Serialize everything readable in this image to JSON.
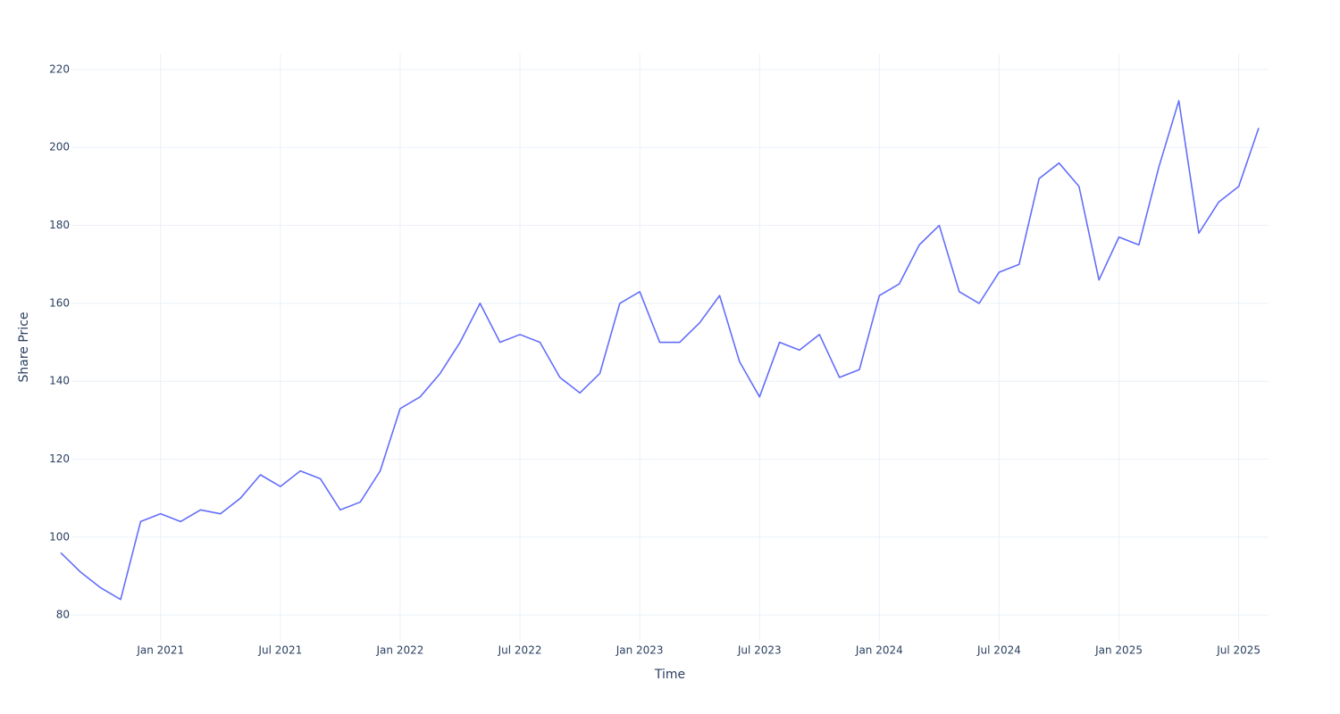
{
  "chart_data": {
    "type": "line",
    "x_label": "Time",
    "y_label": "Share Price",
    "x": [
      "2020-08",
      "2020-09",
      "2020-10",
      "2020-11",
      "2020-12",
      "2021-01",
      "2021-02",
      "2021-03",
      "2021-04",
      "2021-05",
      "2021-06",
      "2021-07",
      "2021-08",
      "2021-09",
      "2021-10",
      "2021-11",
      "2021-12",
      "2022-01",
      "2022-02",
      "2022-03",
      "2022-04",
      "2022-05",
      "2022-06",
      "2022-07",
      "2022-08",
      "2022-09",
      "2022-10",
      "2022-11",
      "2022-12",
      "2023-01",
      "2023-02",
      "2023-03",
      "2023-04",
      "2023-05",
      "2023-06",
      "2023-07",
      "2023-08",
      "2023-09",
      "2023-10",
      "2023-11",
      "2023-12",
      "2024-01",
      "2024-02",
      "2024-03",
      "2024-04",
      "2024-05",
      "2024-06",
      "2024-07",
      "2024-08",
      "2024-09",
      "2024-10",
      "2024-11",
      "2024-12",
      "2025-01",
      "2025-02",
      "2025-03",
      "2025-04",
      "2025-05",
      "2025-06",
      "2025-07",
      "2025-08"
    ],
    "series": [
      {
        "color": "#636efa",
        "values": [
          96,
          91,
          87,
          84,
          104,
          106,
          104,
          107,
          106,
          110,
          116,
          113,
          117,
          115,
          107,
          109,
          117,
          133,
          136,
          142,
          150,
          160,
          150,
          152,
          150,
          141,
          137,
          142,
          160,
          163,
          150,
          150,
          155,
          162,
          145,
          136,
          150,
          148,
          152,
          141,
          143,
          162,
          165,
          175,
          180,
          163,
          160,
          168,
          170,
          192,
          196,
          190,
          166,
          177,
          175,
          195,
          212,
          178,
          186,
          190,
          205
        ]
      }
    ],
    "xlim": [
      "2020-08",
      "2025-08"
    ],
    "xticks": [
      {
        "value": "2021-01",
        "label": "Jan 2021"
      },
      {
        "value": "2021-07",
        "label": "Jul 2021"
      },
      {
        "value": "2022-01",
        "label": "Jan 2022"
      },
      {
        "value": "2022-07",
        "label": "Jul 2022"
      },
      {
        "value": "2023-01",
        "label": "Jan 2023"
      },
      {
        "value": "2023-07",
        "label": "Jul 2023"
      },
      {
        "value": "2024-01",
        "label": "Jan 2024"
      },
      {
        "value": "2024-07",
        "label": "Jul 2024"
      },
      {
        "value": "2025-01",
        "label": "Jan 2025"
      },
      {
        "value": "2025-07",
        "label": "Jul 2025"
      }
    ],
    "ylim": [
      73.4,
      224.1
    ],
    "yticks": [
      80,
      100,
      120,
      140,
      160,
      180,
      200,
      220
    ],
    "grid": true
  }
}
